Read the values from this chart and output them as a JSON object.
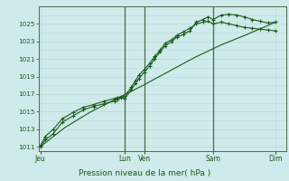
{
  "title": "Pression niveau de la mer( hPa )",
  "bg_color": "#ceeaea",
  "grid_color_minor": "#c0d8d8",
  "grid_color_major": "#a8c4c4",
  "line_color": "#1a5c1a",
  "vline_color": "#4a6a4a",
  "ylim": [
    1010.5,
    1027.0
  ],
  "yticks": [
    1011,
    1013,
    1015,
    1017,
    1019,
    1021,
    1023,
    1025
  ],
  "xlim": [
    0,
    9.5
  ],
  "xlabel_days": [
    "Jeu",
    "Lun",
    "Ven",
    "Sam",
    "Dim"
  ],
  "day_tick_positions": [
    0.05,
    3.3,
    4.05,
    6.7,
    9.1
  ],
  "vline_positions": [
    3.3,
    4.05,
    6.7
  ],
  "series1_x": [
    0.05,
    0.25,
    0.55,
    0.9,
    1.3,
    1.7,
    2.1,
    2.5,
    2.9,
    3.0,
    3.15,
    3.3,
    3.55,
    3.7,
    3.85,
    4.05,
    4.25,
    4.45,
    4.65,
    4.85,
    5.1,
    5.3,
    5.55,
    5.8,
    6.05,
    6.3,
    6.5,
    6.7,
    7.0,
    7.3,
    7.6,
    7.9,
    8.2,
    8.5,
    8.8,
    9.1
  ],
  "series1_y": [
    1011.1,
    1012.2,
    1013.0,
    1014.2,
    1014.9,
    1015.5,
    1015.8,
    1016.2,
    1016.5,
    1016.6,
    1016.7,
    1016.5,
    1017.5,
    1018.2,
    1018.8,
    1019.5,
    1020.2,
    1021.0,
    1021.8,
    1022.5,
    1023.0,
    1023.5,
    1023.8,
    1024.2,
    1025.2,
    1025.5,
    1025.8,
    1025.5,
    1026.0,
    1026.1,
    1026.0,
    1025.8,
    1025.5,
    1025.3,
    1025.1,
    1025.2
  ],
  "series2_x": [
    0.05,
    0.25,
    0.55,
    0.9,
    1.3,
    1.7,
    2.1,
    2.5,
    2.9,
    3.0,
    3.15,
    3.3,
    3.55,
    3.7,
    3.85,
    4.05,
    4.25,
    4.45,
    4.65,
    4.85,
    5.1,
    5.3,
    5.55,
    5.8,
    6.05,
    6.3,
    6.5,
    6.7,
    7.0,
    7.3,
    7.6,
    7.9,
    8.2,
    8.5,
    8.8,
    9.1
  ],
  "series2_y": [
    1011.0,
    1011.8,
    1012.5,
    1013.8,
    1014.5,
    1015.2,
    1015.6,
    1015.9,
    1016.2,
    1016.4,
    1016.6,
    1016.8,
    1017.8,
    1018.5,
    1019.2,
    1019.8,
    1020.5,
    1021.3,
    1022.0,
    1022.8,
    1023.2,
    1023.7,
    1024.1,
    1024.5,
    1025.0,
    1025.2,
    1025.3,
    1025.0,
    1025.2,
    1025.0,
    1024.8,
    1024.6,
    1024.5,
    1024.4,
    1024.3,
    1024.2
  ],
  "series3_x": [
    0.05,
    1.0,
    2.0,
    3.0,
    4.0,
    5.0,
    6.0,
    7.0,
    8.0,
    9.1
  ],
  "series3_y": [
    1011.0,
    1013.2,
    1015.0,
    1016.5,
    1018.0,
    1019.6,
    1021.2,
    1022.6,
    1023.8,
    1025.2
  ],
  "marker": "+",
  "markersize": 3.5,
  "linewidth": 0.8
}
